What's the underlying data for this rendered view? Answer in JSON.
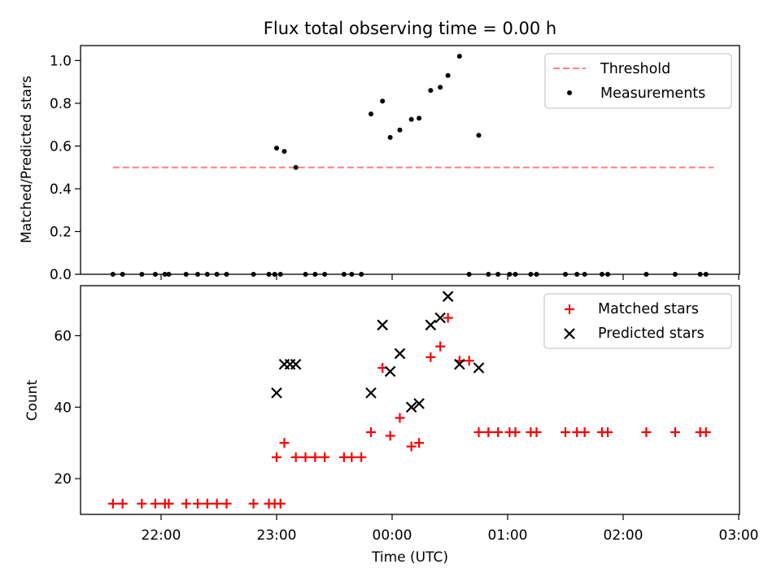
{
  "chart_data": [
    {
      "type": "scatter",
      "title": "Flux total observing time = 0.00 h",
      "xlabel": "",
      "ylabel": "Matched/Predicted stars",
      "ylim": [
        0,
        1.07
      ],
      "yticks": [
        "0.0",
        "0.2",
        "0.4",
        "0.6",
        "0.8",
        "1.0"
      ],
      "legend": {
        "placement": "top-right",
        "entries": [
          "Threshold",
          "Measurements"
        ]
      },
      "threshold": {
        "name": "Threshold",
        "value": 0.5,
        "x_start": "21:35",
        "x_end": "02:47",
        "color": "#ff7f7f"
      },
      "series": [
        {
          "name": "Measurements",
          "color": "#000000",
          "points": [
            [
              "21:35",
              0
            ],
            [
              "21:40",
              0
            ],
            [
              "21:50",
              0
            ],
            [
              "21:57",
              0
            ],
            [
              "22:02",
              0
            ],
            [
              "22:04",
              0
            ],
            [
              "22:13",
              0
            ],
            [
              "22:19",
              0
            ],
            [
              "22:24",
              0
            ],
            [
              "22:29",
              0
            ],
            [
              "22:34",
              0
            ],
            [
              "22:48",
              0
            ],
            [
              "22:56",
              0
            ],
            [
              "22:59",
              0
            ],
            [
              "23:02",
              0
            ],
            [
              "23:00",
              0.59
            ],
            [
              "23:04",
              0.575
            ],
            [
              "23:10",
              0.5
            ],
            [
              "23:15",
              0
            ],
            [
              "23:20",
              0
            ],
            [
              "23:25",
              0
            ],
            [
              "23:35",
              0
            ],
            [
              "23:39",
              0
            ],
            [
              "23:44",
              0
            ],
            [
              "23:49",
              0.75
            ],
            [
              "23:55",
              0.81
            ],
            [
              "23:59",
              0.64
            ],
            [
              "00:04",
              0.675
            ],
            [
              "00:10",
              0.725
            ],
            [
              "00:14",
              0.73
            ],
            [
              "00:20",
              0.86
            ],
            [
              "00:25",
              0.875
            ],
            [
              "00:29",
              0.93
            ],
            [
              "00:35",
              1.02
            ],
            [
              "00:40",
              0
            ],
            [
              "00:45",
              0.65
            ],
            [
              "00:50",
              0
            ],
            [
              "00:55",
              0
            ],
            [
              "01:01",
              0
            ],
            [
              "01:04",
              0
            ],
            [
              "01:12",
              0
            ],
            [
              "01:15",
              0
            ],
            [
              "01:30",
              0
            ],
            [
              "01:36",
              0
            ],
            [
              "01:40",
              0
            ],
            [
              "01:49",
              0
            ],
            [
              "01:52",
              0
            ],
            [
              "02:12",
              0
            ],
            [
              "02:27",
              0
            ],
            [
              "02:40",
              0
            ],
            [
              "02:43",
              0
            ]
          ]
        }
      ]
    },
    {
      "type": "scatter",
      "title": "",
      "xlabel": "Time (UTC)",
      "ylabel": "Count",
      "ylim": [
        10,
        74
      ],
      "yticks": [
        "20",
        "40",
        "60"
      ],
      "xticks": [
        "22:00",
        "23:00",
        "00:00",
        "01:00",
        "02:00",
        "03:00"
      ],
      "legend": {
        "placement": "top-right",
        "entries": [
          "Matched stars",
          "Predicted stars"
        ]
      },
      "series": [
        {
          "name": "Matched stars",
          "marker": "plus",
          "color": "#ff0000",
          "points": [
            [
              "21:35",
              13
            ],
            [
              "21:40",
              13
            ],
            [
              "21:50",
              13
            ],
            [
              "21:57",
              13
            ],
            [
              "22:02",
              13
            ],
            [
              "22:04",
              13
            ],
            [
              "22:13",
              13
            ],
            [
              "22:19",
              13
            ],
            [
              "22:24",
              13
            ],
            [
              "22:29",
              13
            ],
            [
              "22:34",
              13
            ],
            [
              "22:48",
              13
            ],
            [
              "22:56",
              13
            ],
            [
              "22:59",
              13
            ],
            [
              "23:02",
              13
            ],
            [
              "23:00",
              26
            ],
            [
              "23:04",
              30
            ],
            [
              "23:10",
              26
            ],
            [
              "23:15",
              26
            ],
            [
              "23:20",
              26
            ],
            [
              "23:25",
              26
            ],
            [
              "23:35",
              26
            ],
            [
              "23:39",
              26
            ],
            [
              "23:44",
              26
            ],
            [
              "23:49",
              33
            ],
            [
              "23:55",
              51
            ],
            [
              "23:59",
              32
            ],
            [
              "00:04",
              37
            ],
            [
              "00:10",
              29
            ],
            [
              "00:14",
              30
            ],
            [
              "00:20",
              54
            ],
            [
              "00:25",
              57
            ],
            [
              "00:29",
              65
            ],
            [
              "00:35",
              53
            ],
            [
              "00:40",
              53
            ],
            [
              "00:45",
              33
            ],
            [
              "00:50",
              33
            ],
            [
              "00:55",
              33
            ],
            [
              "01:01",
              33
            ],
            [
              "01:04",
              33
            ],
            [
              "01:12",
              33
            ],
            [
              "01:15",
              33
            ],
            [
              "01:30",
              33
            ],
            [
              "01:36",
              33
            ],
            [
              "01:40",
              33
            ],
            [
              "01:49",
              33
            ],
            [
              "01:52",
              33
            ],
            [
              "02:12",
              33
            ],
            [
              "02:27",
              33
            ],
            [
              "02:40",
              33
            ],
            [
              "02:43",
              33
            ]
          ]
        },
        {
          "name": "Predicted stars",
          "marker": "x",
          "color": "#000000",
          "points": [
            [
              "23:00",
              44
            ],
            [
              "23:04",
              52
            ],
            [
              "23:07",
              52
            ],
            [
              "23:10",
              52
            ],
            [
              "23:49",
              44
            ],
            [
              "23:55",
              63
            ],
            [
              "23:59",
              50
            ],
            [
              "00:04",
              55
            ],
            [
              "00:10",
              40
            ],
            [
              "00:14",
              41
            ],
            [
              "00:20",
              63
            ],
            [
              "00:25",
              65
            ],
            [
              "00:29",
              71
            ],
            [
              "00:35",
              52
            ],
            [
              "00:45",
              51
            ]
          ]
        }
      ]
    }
  ]
}
